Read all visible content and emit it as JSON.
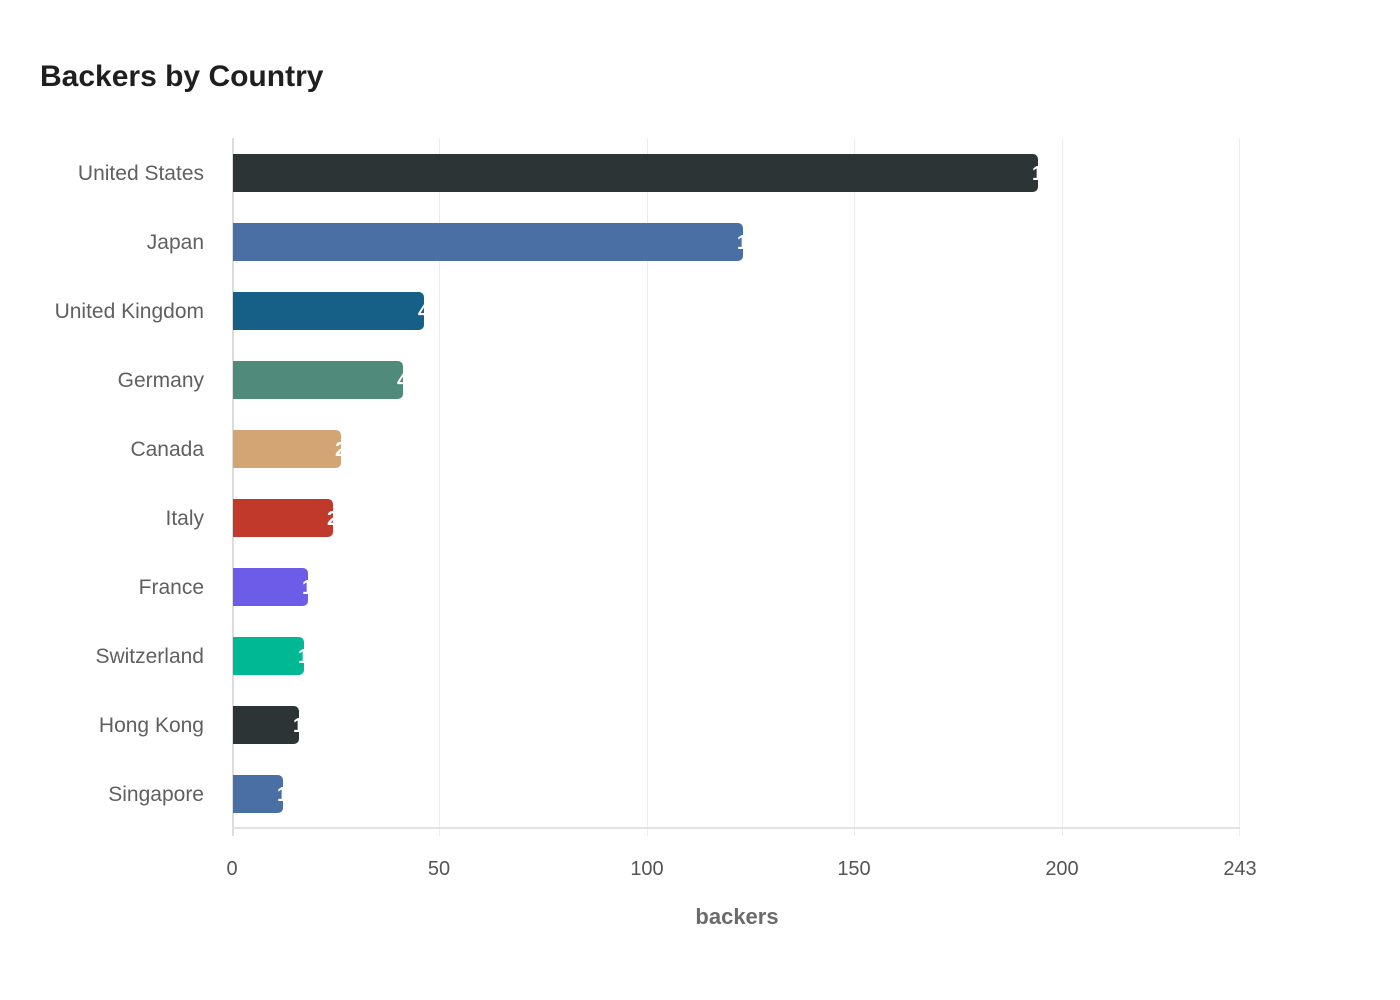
{
  "chart_data": {
    "type": "bar",
    "orientation": "horizontal",
    "title": "Backers by Country",
    "xlabel": "backers",
    "ylabel": "",
    "xlim": [
      0,
      243
    ],
    "xticks": [
      0,
      50,
      100,
      150,
      200,
      243
    ],
    "grid": true,
    "legend": null,
    "categories": [
      "United States",
      "Japan",
      "United Kingdom",
      "Germany",
      "Canada",
      "Italy",
      "France",
      "Switzerland",
      "Hong Kong",
      "Singapore"
    ],
    "values": [
      194,
      123,
      46,
      41,
      26,
      24,
      18,
      17,
      16,
      12
    ],
    "colors": [
      "#2d3436",
      "#4a6fa5",
      "#166088",
      "#4f8a7a",
      "#d4a574",
      "#c0392b",
      "#6c5ce7",
      "#00b894",
      "#2d3436",
      "#4a6fa5"
    ]
  },
  "title": "Backers by Country",
  "axis": {
    "x_label": "backers",
    "ticks": [
      "0",
      "50",
      "100",
      "150",
      "200",
      "243"
    ]
  },
  "bars": [
    {
      "label": "United States",
      "value": "194",
      "color": "#2d3436"
    },
    {
      "label": "Japan",
      "value": "123",
      "color": "#4a6fa5"
    },
    {
      "label": "United Kingdom",
      "value": "46",
      "color": "#166088"
    },
    {
      "label": "Germany",
      "value": "41",
      "color": "#4f8a7a"
    },
    {
      "label": "Canada",
      "value": "26",
      "color": "#d4a574"
    },
    {
      "label": "Italy",
      "value": "24",
      "color": "#c0392b"
    },
    {
      "label": "France",
      "value": "18",
      "color": "#6c5ce7"
    },
    {
      "label": "Switzerland",
      "value": "17",
      "color": "#00b894"
    },
    {
      "label": "Hong Kong",
      "value": "16",
      "color": "#2d3436"
    },
    {
      "label": "Singapore",
      "value": "12",
      "color": "#4a6fa5"
    }
  ]
}
